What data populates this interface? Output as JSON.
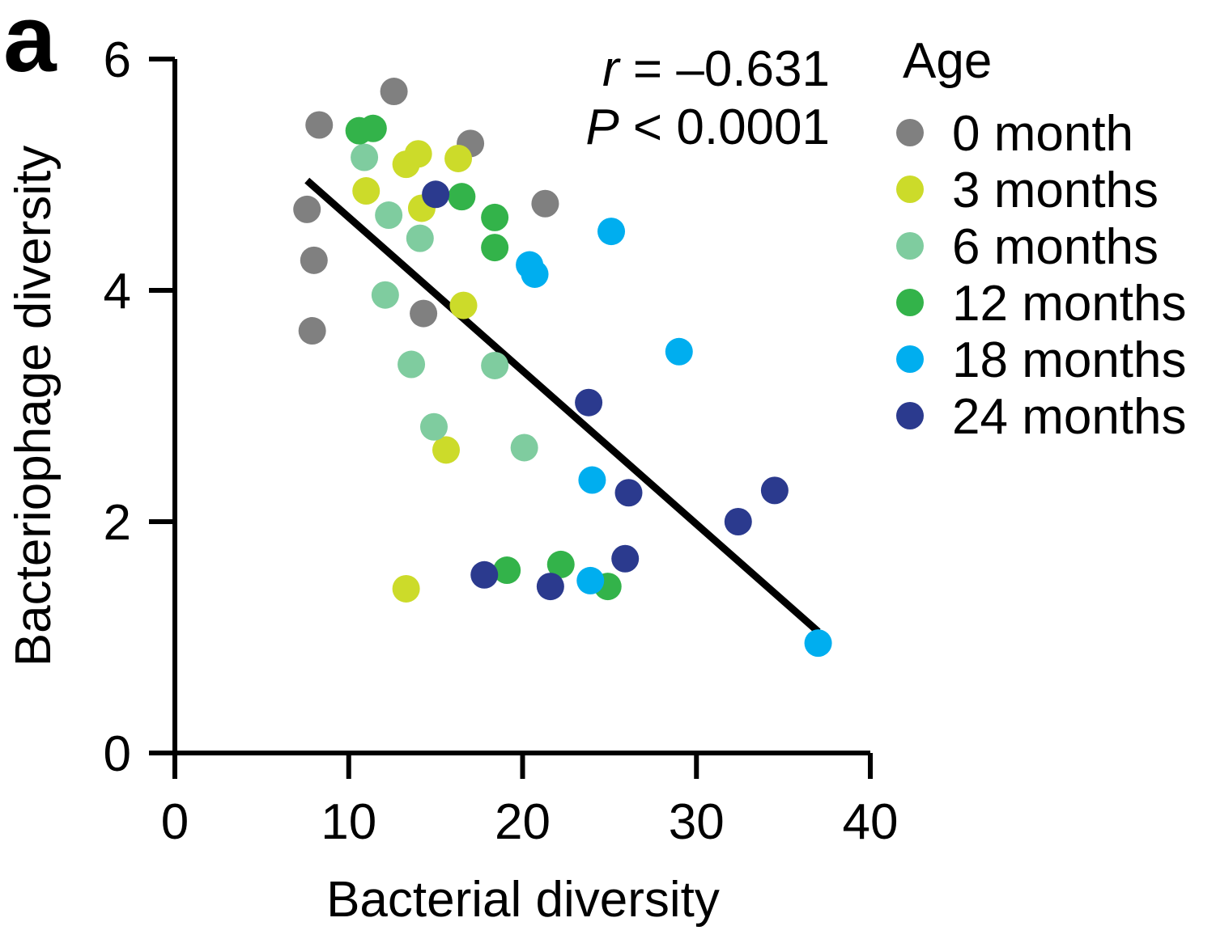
{
  "panel_label": "a",
  "chart_data": {
    "type": "scatter",
    "xlabel": "Bacterial diversity",
    "ylabel": "Bacteriophage diversity",
    "xlim": [
      0,
      40
    ],
    "ylim": [
      0,
      6
    ],
    "x_ticks": [
      0,
      10,
      20,
      30,
      40
    ],
    "y_ticks": [
      0,
      2,
      4,
      6
    ],
    "grid": false,
    "legend_title": "Age",
    "legend_position": "right",
    "annotation": {
      "r_symbol": "r",
      "r_text": " = –0.631",
      "p_symbol": "P",
      "p_text": " < 0.0001"
    },
    "regression_line": {
      "x": [
        7.6,
        37.0
      ],
      "y": [
        4.95,
        1.05
      ],
      "color": "#000000"
    },
    "series": [
      {
        "name": "0 month",
        "color": "#808080",
        "points": [
          [
            7.6,
            4.7
          ],
          [
            8.3,
            5.43
          ],
          [
            8.0,
            4.26
          ],
          [
            7.9,
            3.65
          ],
          [
            12.6,
            5.72
          ],
          [
            17.0,
            5.27
          ],
          [
            21.3,
            4.75
          ],
          [
            14.3,
            3.8
          ]
        ]
      },
      {
        "name": "3 months",
        "color": "#ccdb2a",
        "points": [
          [
            11.0,
            4.86
          ],
          [
            13.3,
            5.09
          ],
          [
            14.0,
            5.18
          ],
          [
            16.3,
            5.14
          ],
          [
            14.2,
            4.71
          ],
          [
            16.6,
            3.87
          ],
          [
            15.6,
            2.62
          ],
          [
            13.3,
            1.42
          ]
        ]
      },
      {
        "name": "6 months",
        "color": "#7fcc9f",
        "points": [
          [
            10.9,
            5.15
          ],
          [
            12.3,
            4.65
          ],
          [
            14.1,
            4.45
          ],
          [
            12.1,
            3.96
          ],
          [
            13.6,
            3.36
          ],
          [
            18.4,
            3.35
          ],
          [
            14.9,
            2.82
          ],
          [
            20.1,
            2.64
          ]
        ]
      },
      {
        "name": "12 months",
        "color": "#33b34a",
        "points": [
          [
            10.6,
            5.38
          ],
          [
            11.4,
            5.4
          ],
          [
            16.5,
            4.81
          ],
          [
            18.4,
            4.63
          ],
          [
            18.4,
            4.37
          ],
          [
            19.1,
            1.58
          ],
          [
            22.2,
            1.63
          ],
          [
            24.9,
            1.44
          ]
        ]
      },
      {
        "name": "18 months",
        "color": "#00aeef",
        "points": [
          [
            25.1,
            4.51
          ],
          [
            20.4,
            4.22
          ],
          [
            20.7,
            4.14
          ],
          [
            29.0,
            3.47
          ],
          [
            24.0,
            2.36
          ],
          [
            23.9,
            1.49
          ],
          [
            37.0,
            0.95
          ]
        ]
      },
      {
        "name": "24 months",
        "color": "#2b3a8e",
        "points": [
          [
            15.0,
            4.83
          ],
          [
            23.8,
            3.03
          ],
          [
            26.1,
            2.25
          ],
          [
            34.5,
            2.27
          ],
          [
            32.4,
            2.0
          ],
          [
            25.9,
            1.68
          ],
          [
            17.8,
            1.54
          ],
          [
            21.6,
            1.44
          ]
        ]
      }
    ]
  }
}
